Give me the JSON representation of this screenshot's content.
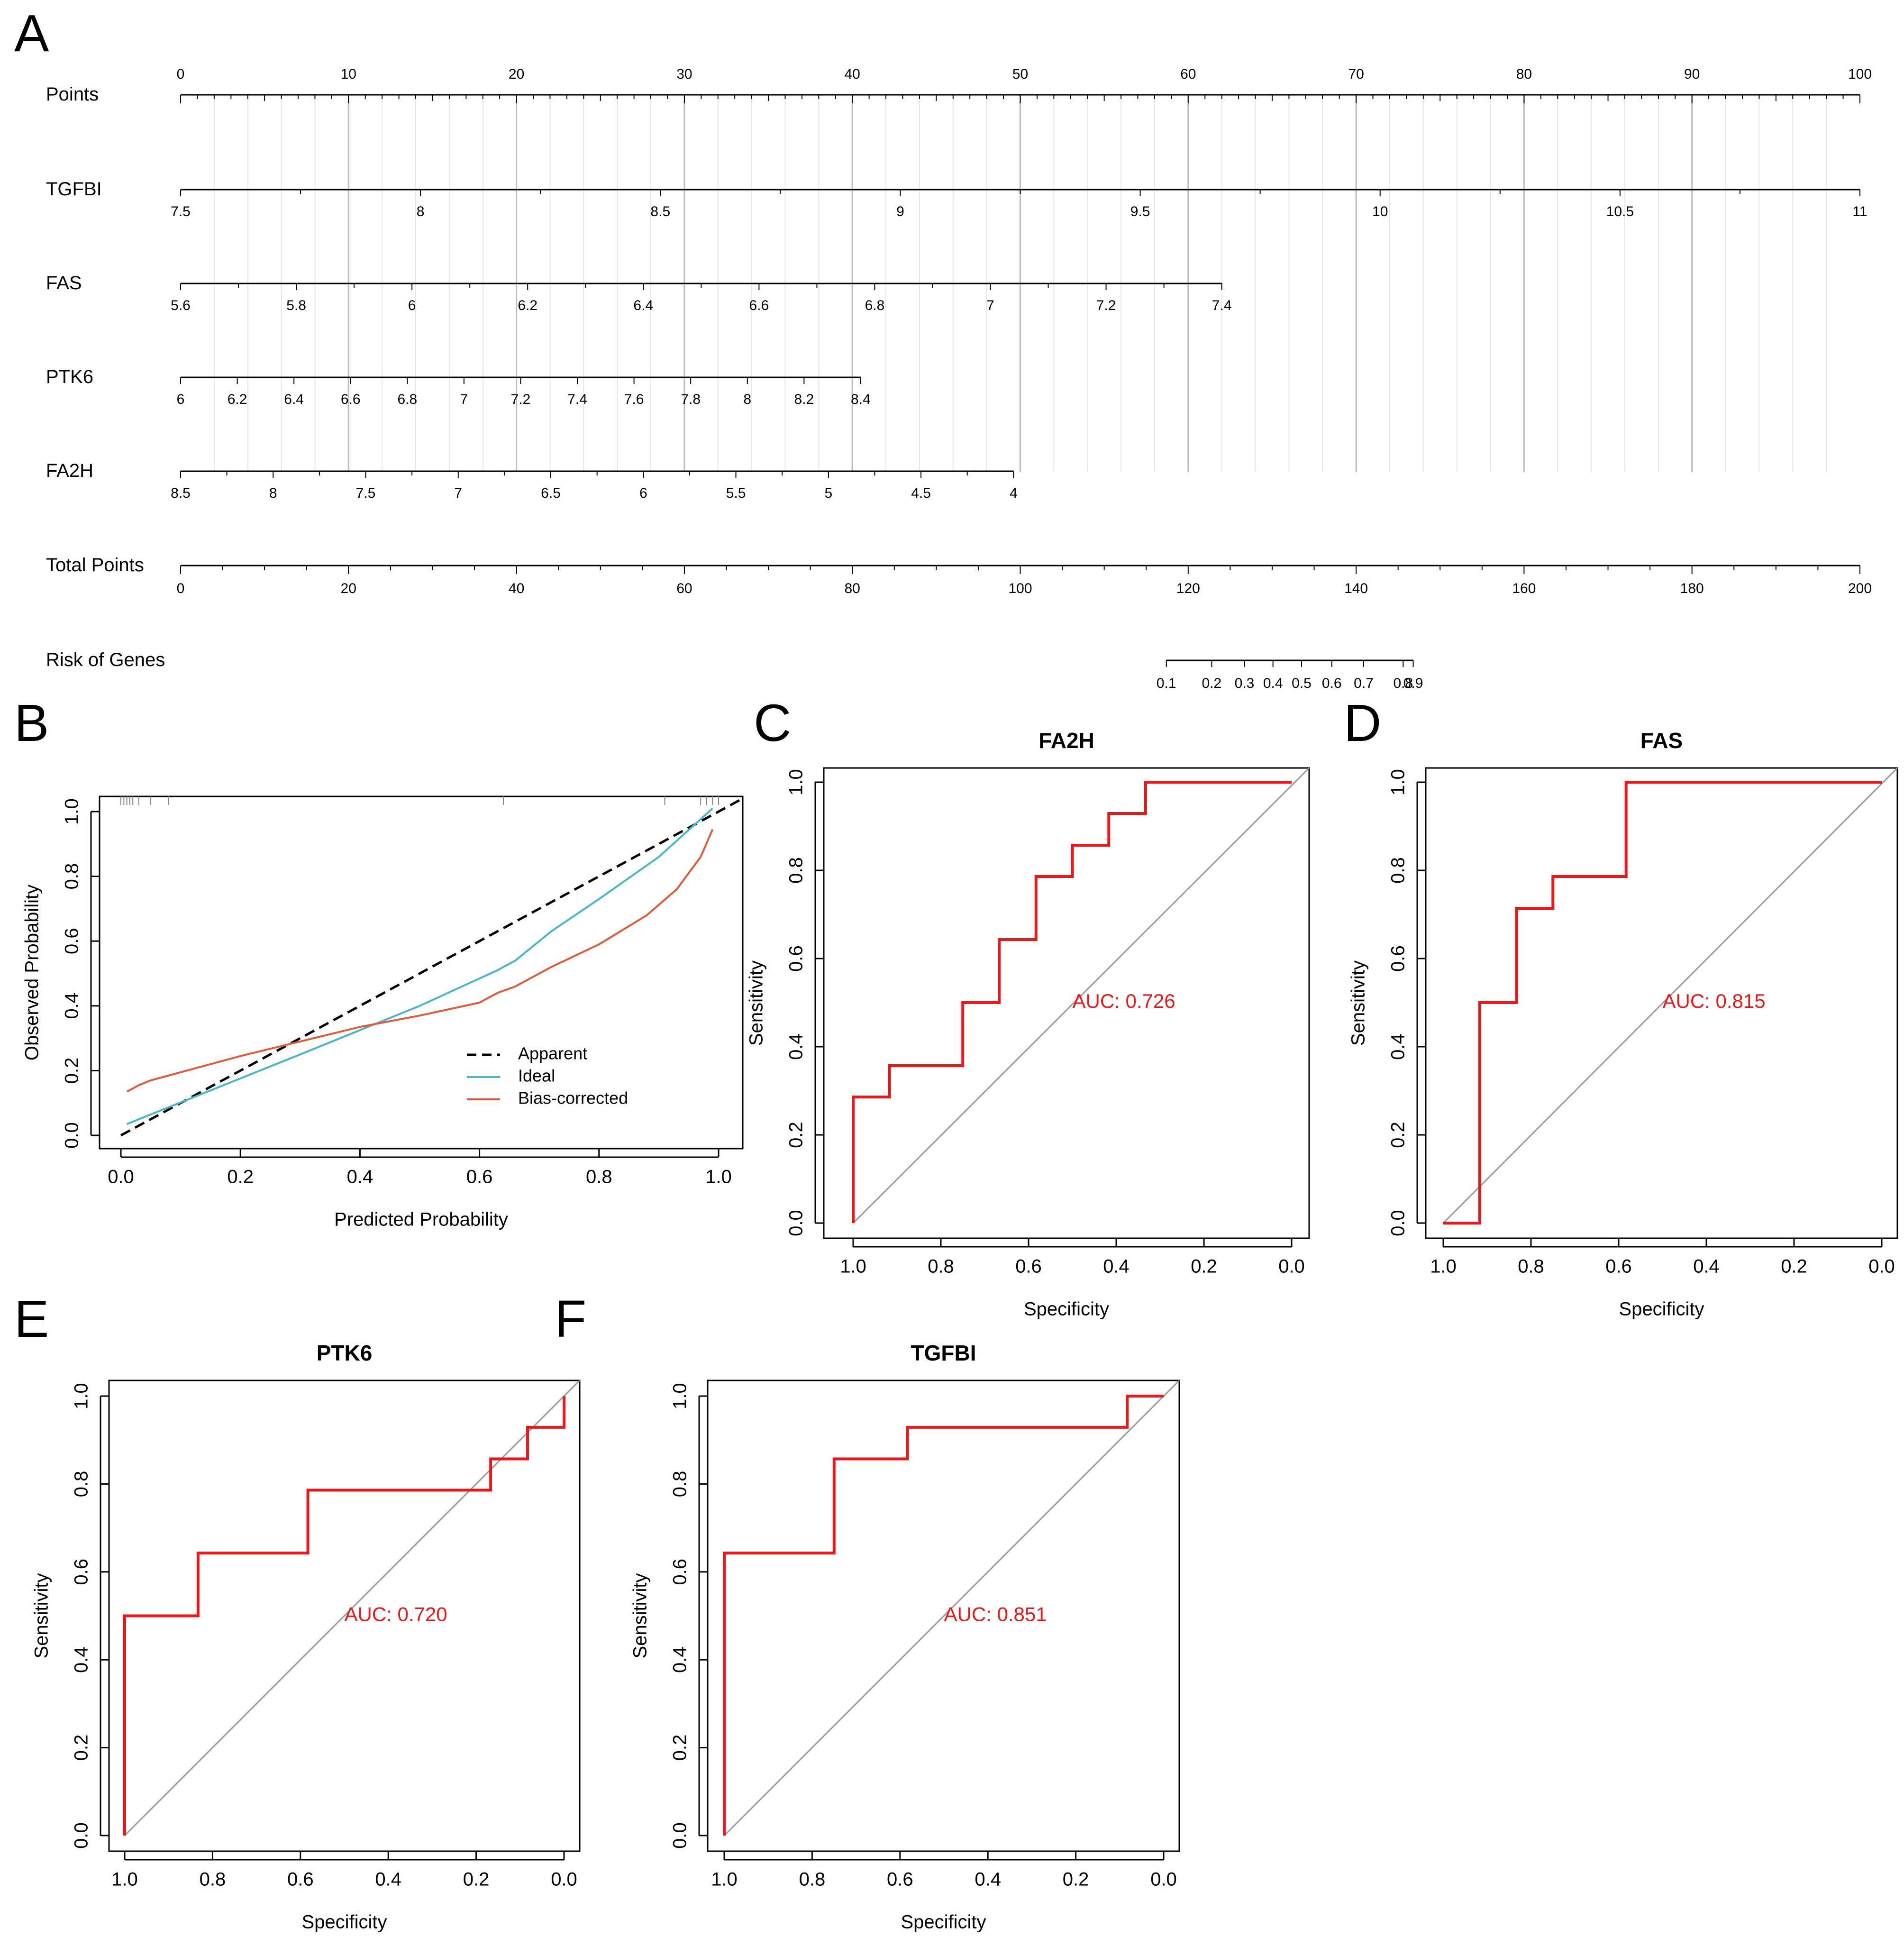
{
  "chart_data": {
    "panels": [
      {
        "letter": "A",
        "type": "nomogram",
        "rows": [
          {
            "label": "Points",
            "kind": "points",
            "min": 0,
            "max": 100,
            "labels": [
              "0",
              "10",
              "20",
              "30",
              "40",
              "50",
              "60",
              "70",
              "80",
              "90",
              "100"
            ]
          },
          {
            "label": "TGFBI",
            "kind": "variable",
            "points_range": [
              0,
              100
            ],
            "labels": [
              "7.5",
              "8",
              "8.5",
              "9",
              "9.5",
              "10",
              "10.5",
              "11"
            ]
          },
          {
            "label": "FAS",
            "kind": "variable",
            "points_range": [
              0,
              62
            ],
            "labels": [
              "5.6",
              "5.8",
              "6",
              "6.2",
              "6.4",
              "6.6",
              "6.8",
              "7",
              "7.2",
              "7.4"
            ]
          },
          {
            "label": "PTK6",
            "kind": "variable",
            "points_range": [
              0,
              40.5
            ],
            "labels": [
              "6",
              "6.2",
              "6.4",
              "6.6",
              "6.8",
              "7",
              "7.2",
              "7.4",
              "7.6",
              "7.8",
              "8",
              "8.2",
              "8.4"
            ]
          },
          {
            "label": "FA2H",
            "kind": "variable",
            "points_range": [
              0,
              49.6
            ],
            "labels": [
              "8.5",
              "8",
              "7.5",
              "7",
              "6.5",
              "6",
              "5.5",
              "5",
              "4.5",
              "4"
            ]
          },
          {
            "label": "Total Points",
            "kind": "total",
            "min": 0,
            "max": 200,
            "labels": [
              "0",
              "20",
              "40",
              "60",
              "80",
              "100",
              "120",
              "140",
              "160",
              "180",
              "200"
            ]
          },
          {
            "label": "Risk of Genes",
            "kind": "risk",
            "labels": [
              "0.1",
              "0.2",
              "0.3",
              "0.4",
              "0.5",
              "0.6",
              "0.7",
              "0.8",
              "0.9"
            ],
            "total_points_at": [
              117.4,
              122.8,
              126.7,
              130.1,
              133.5,
              137.1,
              140.9,
              145.6,
              146.8
            ]
          }
        ]
      },
      {
        "letter": "B",
        "type": "calibration",
        "xlabel": "Predicted Probability",
        "ylabel": "Observed Probability",
        "xlim": [
          0,
          1
        ],
        "ylim": [
          0,
          1
        ],
        "xticks": [
          "0.0",
          "0.2",
          "0.4",
          "0.6",
          "0.8",
          "1.0"
        ],
        "yticks": [
          "0.0",
          "0.2",
          "0.4",
          "0.6",
          "0.8",
          "1.0"
        ],
        "legend": [
          "Apparent",
          "Ideal",
          "Bias-corrected"
        ],
        "series": [
          {
            "name": "Apparent",
            "color": "#000000",
            "dash": true,
            "x": [
              0.0,
              1.04
            ],
            "y": [
              0.0,
              1.04
            ]
          },
          {
            "name": "Ideal",
            "color": "#4cb5c9",
            "dash": false,
            "x": [
              0.01,
              0.3,
              0.5,
              0.63,
              0.66,
              0.72,
              0.8,
              0.9,
              0.99
            ],
            "y": [
              0.035,
              0.25,
              0.4,
              0.51,
              0.54,
              0.63,
              0.73,
              0.86,
              1.01
            ]
          },
          {
            "name": "Bias-corrected",
            "color": "#de5b3d",
            "dash": false,
            "x": [
              0.01,
              0.03,
              0.05,
              0.1,
              0.2,
              0.3,
              0.4,
              0.5,
              0.6,
              0.63,
              0.66,
              0.72,
              0.8,
              0.88,
              0.93,
              0.97,
              0.99
            ],
            "y": [
              0.135,
              0.155,
              0.17,
              0.195,
              0.245,
              0.29,
              0.335,
              0.37,
              0.41,
              0.44,
              0.46,
              0.52,
              0.59,
              0.68,
              0.76,
              0.86,
              0.945
            ]
          }
        ],
        "rug_x": [
          0.0,
          0.005,
          0.01,
          0.015,
          0.02,
          0.03,
          0.05,
          0.08,
          0.64,
          0.91,
          0.97,
          0.98,
          0.99,
          1.0
        ]
      },
      {
        "letter": "C",
        "type": "roc",
        "title": "FA2H",
        "auc": "AUC: 0.726",
        "xlabel": "Specificity",
        "ylabel": "Sensitivity",
        "xticks": [
          "1.0",
          "0.8",
          "0.6",
          "0.4",
          "0.2",
          "0.0"
        ],
        "yticks": [
          "0.0",
          "0.2",
          "0.4",
          "0.6",
          "0.8",
          "1.0"
        ],
        "specificity": [
          1.0,
          1.0,
          0.917,
          0.917,
          0.75,
          0.75,
          0.667,
          0.667,
          0.583,
          0.583,
          0.5,
          0.5,
          0.417,
          0.417,
          0.333,
          0.333,
          0.0
        ],
        "sensitivity": [
          0.0,
          0.286,
          0.286,
          0.357,
          0.357,
          0.5,
          0.5,
          0.643,
          0.643,
          0.786,
          0.786,
          0.857,
          0.857,
          0.929,
          0.929,
          1.0,
          1.0
        ]
      },
      {
        "letter": "D",
        "type": "roc",
        "title": "FAS",
        "auc": "AUC: 0.815",
        "xlabel": "Specificity",
        "ylabel": "Sensitivity",
        "xticks": [
          "1.0",
          "0.8",
          "0.6",
          "0.4",
          "0.2",
          "0.0"
        ],
        "yticks": [
          "0.0",
          "0.2",
          "0.4",
          "0.6",
          "0.8",
          "1.0"
        ],
        "specificity": [
          1.0,
          0.917,
          0.917,
          0.833,
          0.833,
          0.75,
          0.75,
          0.583,
          0.583,
          0.0
        ],
        "sensitivity": [
          0.0,
          0.0,
          0.5,
          0.5,
          0.714,
          0.714,
          0.786,
          0.786,
          1.0,
          1.0
        ]
      },
      {
        "letter": "E",
        "type": "roc",
        "title": "PTK6",
        "auc": "AUC: 0.720",
        "xlabel": "Specificity",
        "ylabel": "Sensitivity",
        "xticks": [
          "1.0",
          "0.8",
          "0.6",
          "0.4",
          "0.2",
          "0.0"
        ],
        "yticks": [
          "0.0",
          "0.2",
          "0.4",
          "0.6",
          "0.8",
          "1.0"
        ],
        "specificity": [
          1.0,
          1.0,
          0.833,
          0.833,
          0.583,
          0.583,
          0.167,
          0.167,
          0.083,
          0.083,
          0.0,
          0.0
        ],
        "sensitivity": [
          0.0,
          0.5,
          0.5,
          0.643,
          0.643,
          0.786,
          0.786,
          0.857,
          0.857,
          0.929,
          0.929,
          1.0
        ]
      },
      {
        "letter": "F",
        "type": "roc",
        "title": "TGFBI",
        "auc": "AUC: 0.851",
        "xlabel": "Specificity",
        "ylabel": "Sensitivity",
        "xticks": [
          "1.0",
          "0.8",
          "0.6",
          "0.4",
          "0.2",
          "0.0"
        ],
        "yticks": [
          "0.0",
          "0.2",
          "0.4",
          "0.6",
          "0.8",
          "1.0"
        ],
        "specificity": [
          1.0,
          1.0,
          0.75,
          0.75,
          0.583,
          0.583,
          0.083,
          0.083,
          0.0
        ],
        "sensitivity": [
          0.0,
          0.643,
          0.643,
          0.857,
          0.857,
          0.929,
          0.929,
          1.0,
          1.0
        ]
      }
    ]
  }
}
